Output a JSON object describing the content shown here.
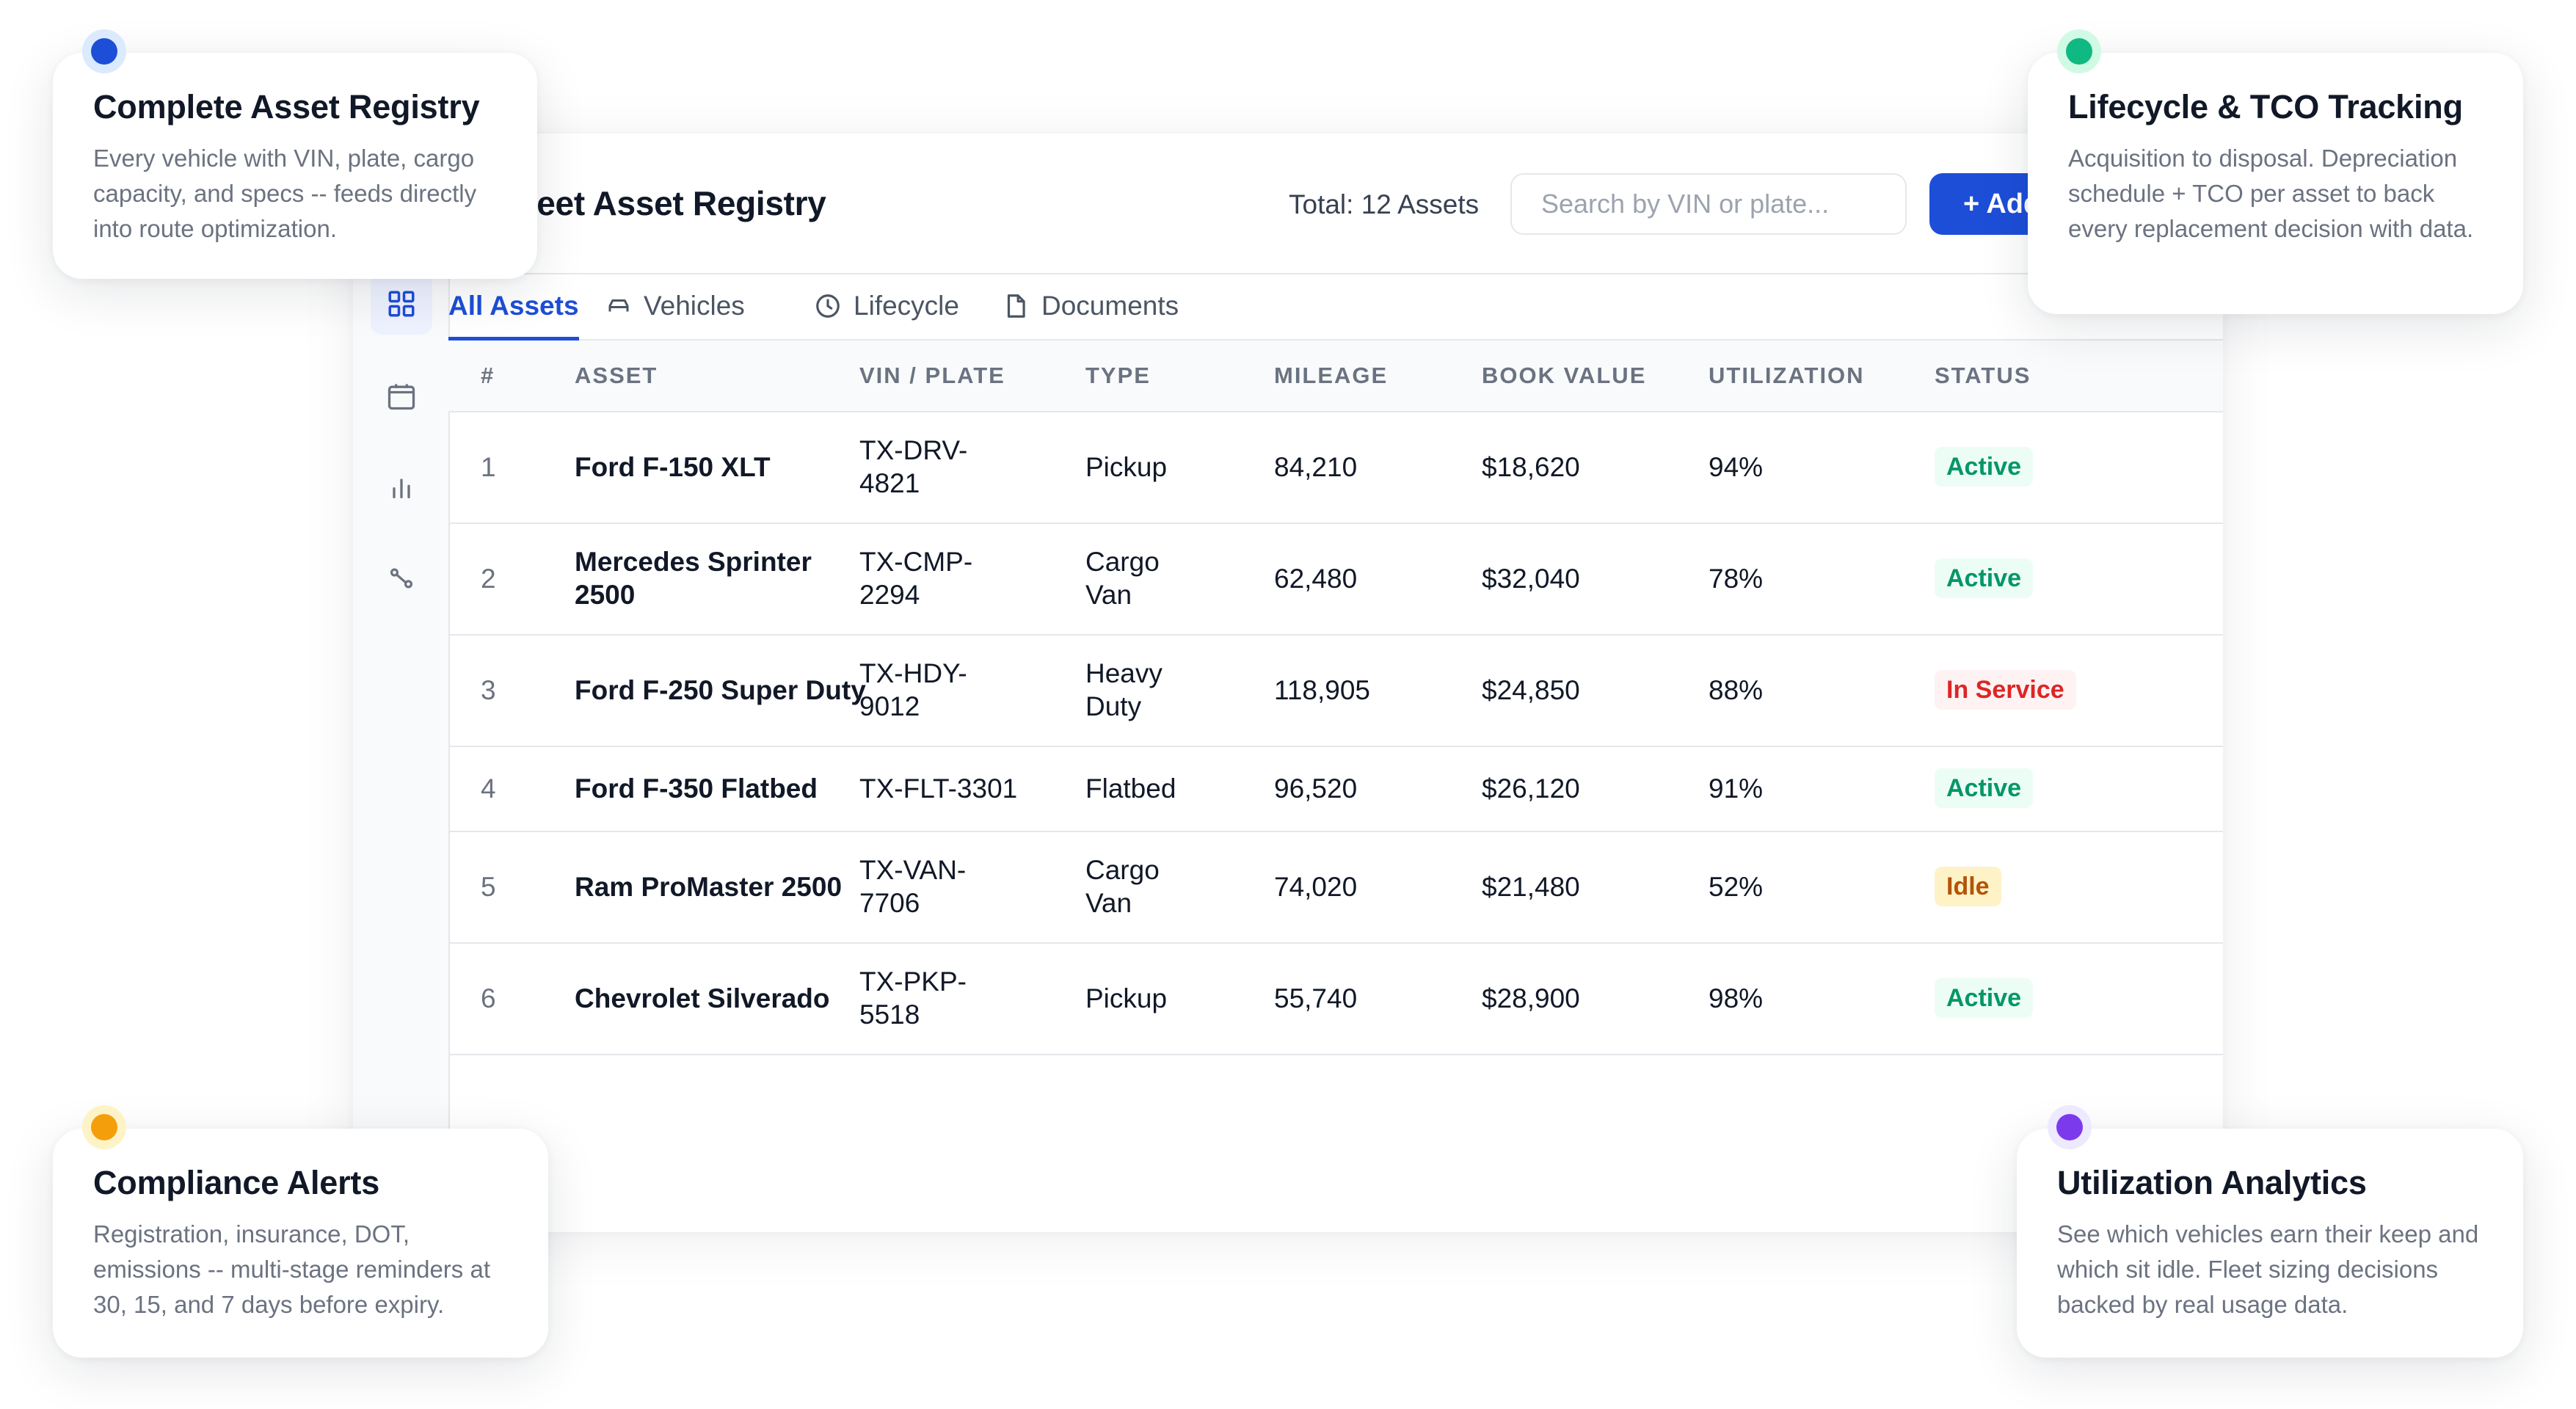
{
  "header": {
    "title": "Fleet Asset Registry",
    "total": "Total: 12 Assets",
    "search_placeholder": "Search by VIN or plate...",
    "add_label": "+ Add Asset"
  },
  "sidebar": {
    "items": [
      {
        "name": "grid-icon",
        "active": true
      },
      {
        "name": "calendar-icon",
        "active": false
      },
      {
        "name": "chart-icon",
        "active": false
      },
      {
        "name": "route-icon",
        "active": false
      }
    ]
  },
  "tabs": [
    {
      "label": "All Assets",
      "icon": "none",
      "active": true
    },
    {
      "label": "Vehicles",
      "icon": "car-icon",
      "active": false
    },
    {
      "label": "Lifecycle",
      "icon": "clock-icon",
      "active": false
    },
    {
      "label": "Documents",
      "icon": "document-icon",
      "active": false
    }
  ],
  "table": {
    "columns": [
      "#",
      "ASSET",
      "VIN / PLATE",
      "TYPE",
      "MILEAGE",
      "BOOK VALUE",
      "UTILIZATION",
      "STATUS"
    ],
    "rows": [
      {
        "num": "1",
        "asset": "Ford F-150 XLT",
        "vin": "TX-DRV-4821",
        "type": "Pickup",
        "mileage": "84,210",
        "book_value": "$18,620",
        "utilization": "94%",
        "status": "Active"
      },
      {
        "num": "2",
        "asset": "Mercedes Sprinter 2500",
        "vin": "TX-CMP-2294",
        "type": "Cargo Van",
        "mileage": "62,480",
        "book_value": "$32,040",
        "utilization": "78%",
        "status": "Active"
      },
      {
        "num": "3",
        "asset": "Ford F-250 Super Duty",
        "vin": "TX-HDY-9012",
        "type": "Heavy Duty",
        "mileage": "118,905",
        "book_value": "$24,850",
        "utilization": "88%",
        "status": "In Service"
      },
      {
        "num": "4",
        "asset": "Ford F-350 Flatbed",
        "vin": "TX-FLT-3301",
        "type": "Flatbed",
        "mileage": "96,520",
        "book_value": "$26,120",
        "utilization": "91%",
        "status": "Active"
      },
      {
        "num": "5",
        "asset": "Ram ProMaster 2500",
        "vin": "TX-VAN-7706",
        "type": "Cargo Van",
        "mileage": "74,020",
        "book_value": "$21,480",
        "utilization": "52%",
        "status": "Idle"
      },
      {
        "num": "6",
        "asset": "Chevrolet Silverado",
        "vin": "TX-PKP-5518",
        "type": "Pickup",
        "mileage": "55,740",
        "book_value": "$28,900",
        "utilization": "98%",
        "status": "Active"
      }
    ]
  },
  "status_colors": {
    "Active": "#059669",
    "In Service": "#dc2626",
    "Idle": "#b45309"
  },
  "callouts": [
    {
      "title": "Complete Asset Registry",
      "description": "Every vehicle with VIN, plate, cargo capacity, and specs -- feeds directly into route optimization.",
      "color": "#1d4ed8"
    },
    {
      "title": "Lifecycle & TCO Tracking",
      "description": "Acquisition to disposal. Depreciation schedule + TCO per asset to back every replacement decision with data.",
      "color": "#10b981"
    },
    {
      "title": "Compliance Alerts",
      "description": "Registration, insurance, DOT, emissions -- multi-stage reminders at 30, 15, and 7 days before expiry.",
      "color": "#f59e0b"
    },
    {
      "title": "Utilization Analytics",
      "description": "See which vehicles earn their keep and which sit idle. Fleet sizing decisions backed by real usage data.",
      "color": "#7c3aed"
    }
  ]
}
